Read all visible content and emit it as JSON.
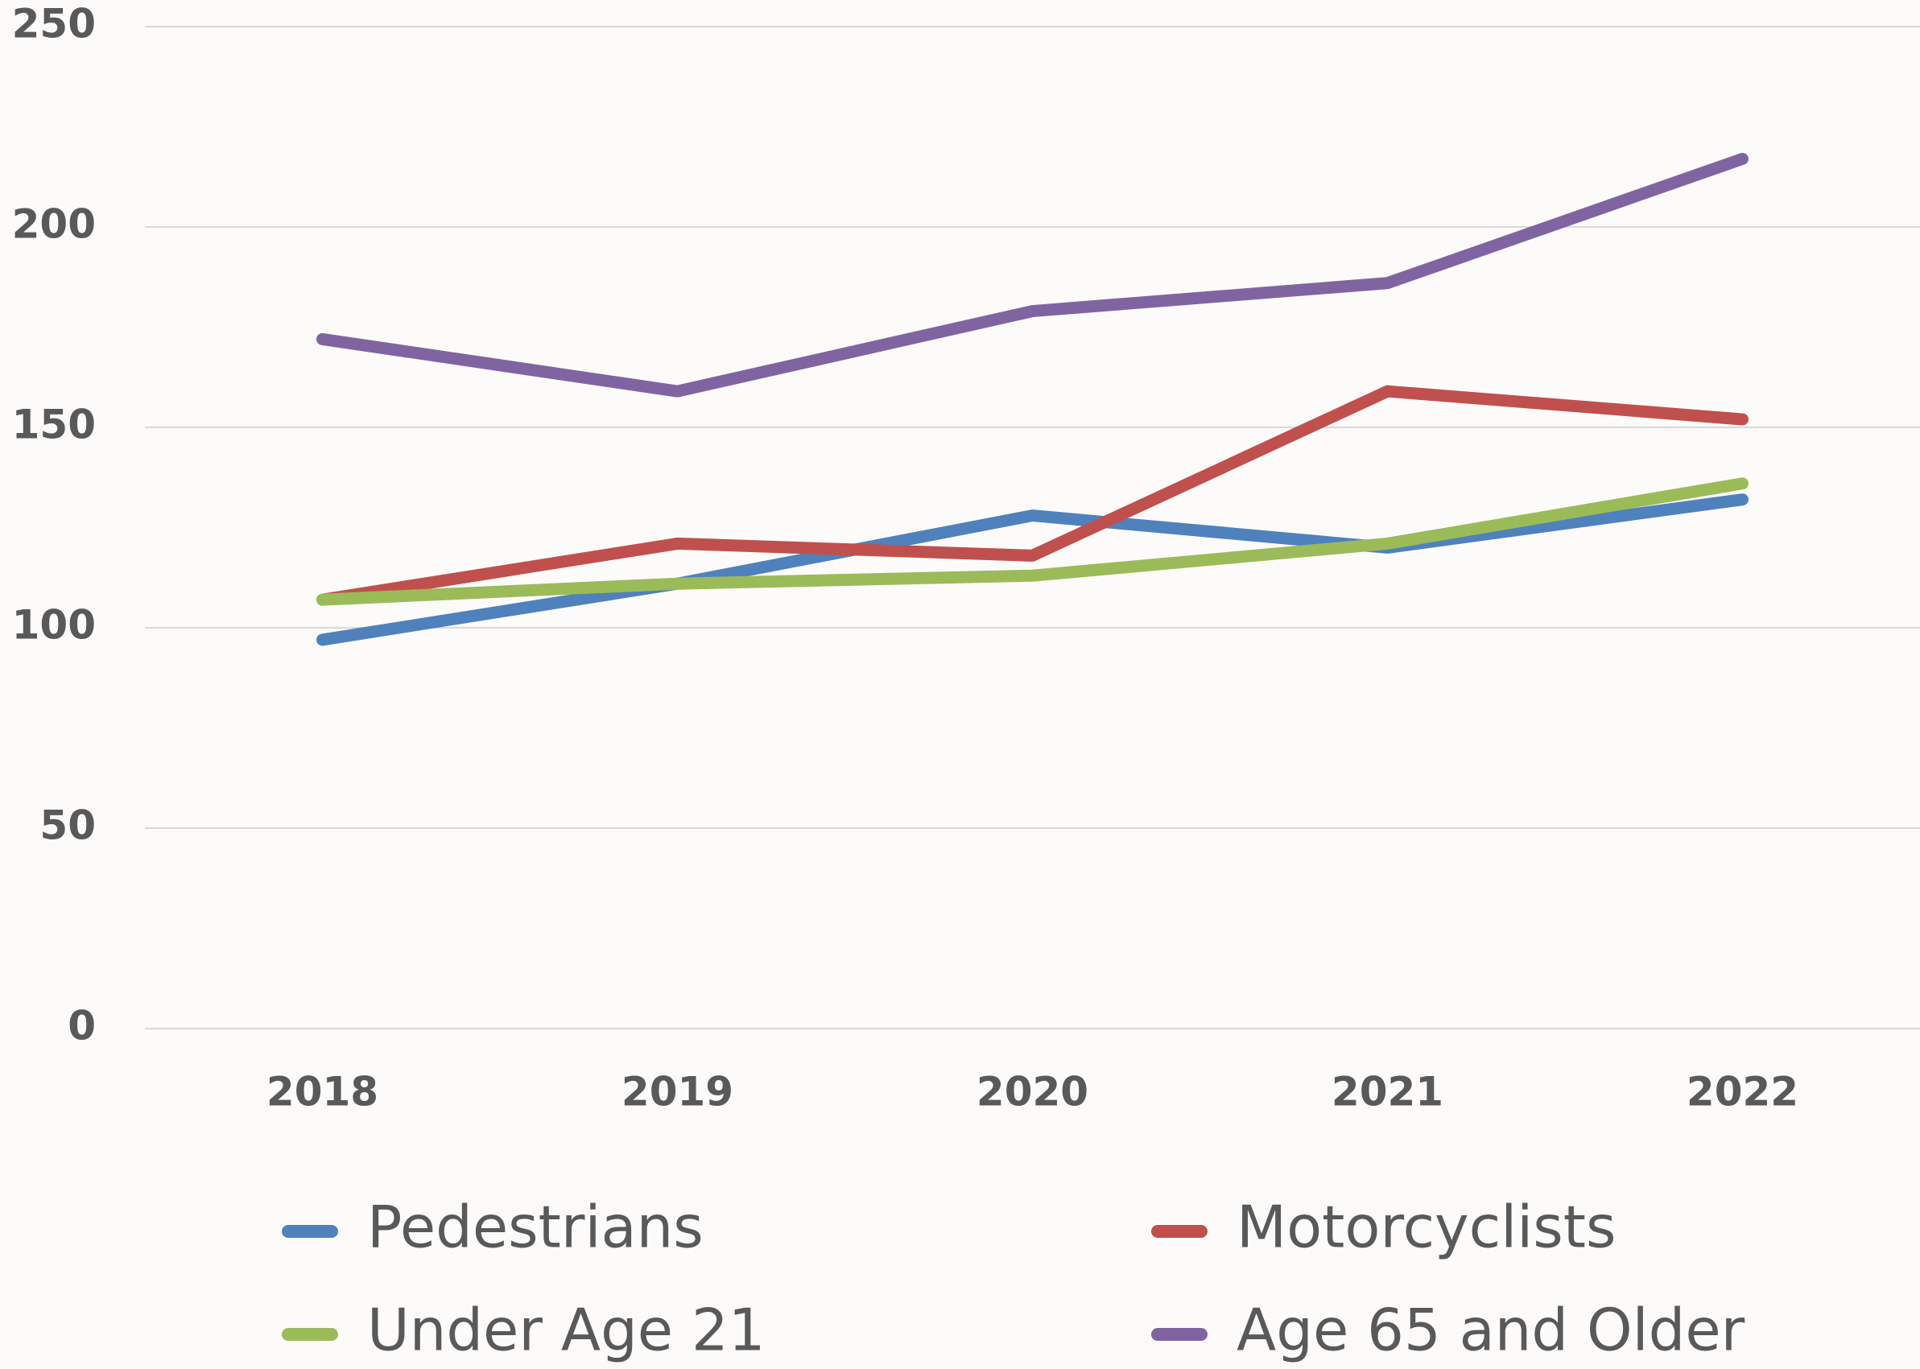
{
  "chart_data": {
    "type": "line",
    "categories": [
      "2018",
      "2019",
      "2020",
      "2021",
      "2022"
    ],
    "series": [
      {
        "name": "Pedestrians",
        "color": "#4f81bd",
        "values": [
          97,
          111,
          128,
          120,
          132
        ]
      },
      {
        "name": "Motorcyclists",
        "color": "#c0504d",
        "values": [
          107,
          121,
          118,
          159,
          152
        ]
      },
      {
        "name": "Under Age 21",
        "color": "#9bbb59",
        "values": [
          107,
          111,
          113,
          121,
          136
        ]
      },
      {
        "name": "Age 65 and Older",
        "color": "#8064a2",
        "values": [
          172,
          159,
          179,
          186,
          217
        ]
      }
    ],
    "ylim": [
      0,
      250
    ],
    "yticks": [
      0,
      50,
      100,
      150,
      200,
      250
    ],
    "grid": true,
    "legend": "bottom"
  }
}
